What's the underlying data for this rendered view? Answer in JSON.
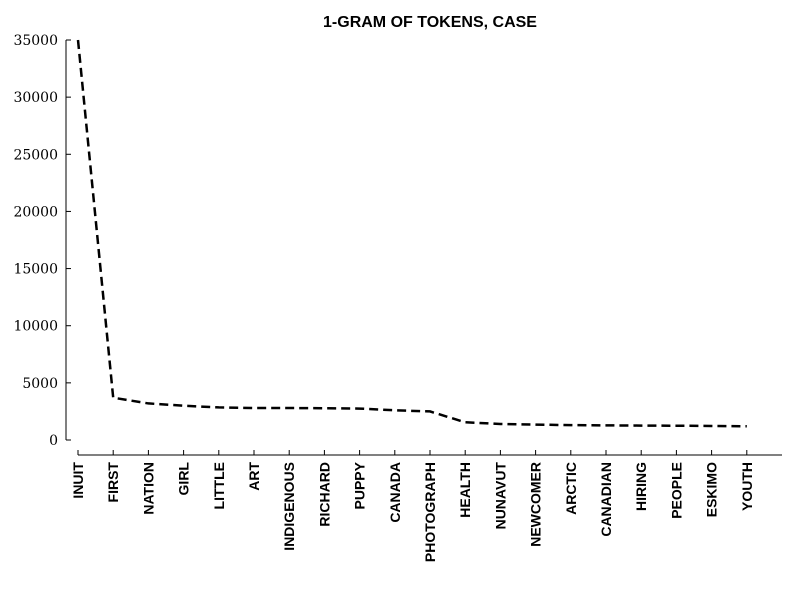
{
  "chart_data": {
    "type": "line",
    "title": "1-GRAM OF TOKENS, CASE",
    "xlabel": "",
    "ylabel": "",
    "categories": [
      "INUIT",
      "FIRST",
      "NATION",
      "GIRL",
      "LITTLE",
      "ART",
      "INDIGENOUS",
      "RICHARD",
      "PUPPY",
      "CANADA",
      "PHOTOGRAPH",
      "HEALTH",
      "NUNAVUT",
      "NEWCOMER",
      "ARCTIC",
      "CANADIAN",
      "HIRING",
      "PEOPLE",
      "ESKIMO",
      "YOUTH"
    ],
    "values": [
      35000,
      3700,
      3200,
      3000,
      2850,
      2800,
      2800,
      2780,
      2750,
      2600,
      2500,
      1550,
      1400,
      1350,
      1300,
      1280,
      1260,
      1250,
      1230,
      1200
    ],
    "y_ticks": [
      "0",
      "5000",
      "10000",
      "15000",
      "20000",
      "25000",
      "30000",
      "35000"
    ],
    "ylim": [
      0,
      35000
    ],
    "grid": false,
    "line_style": "dashed",
    "line_color": "#000000"
  }
}
